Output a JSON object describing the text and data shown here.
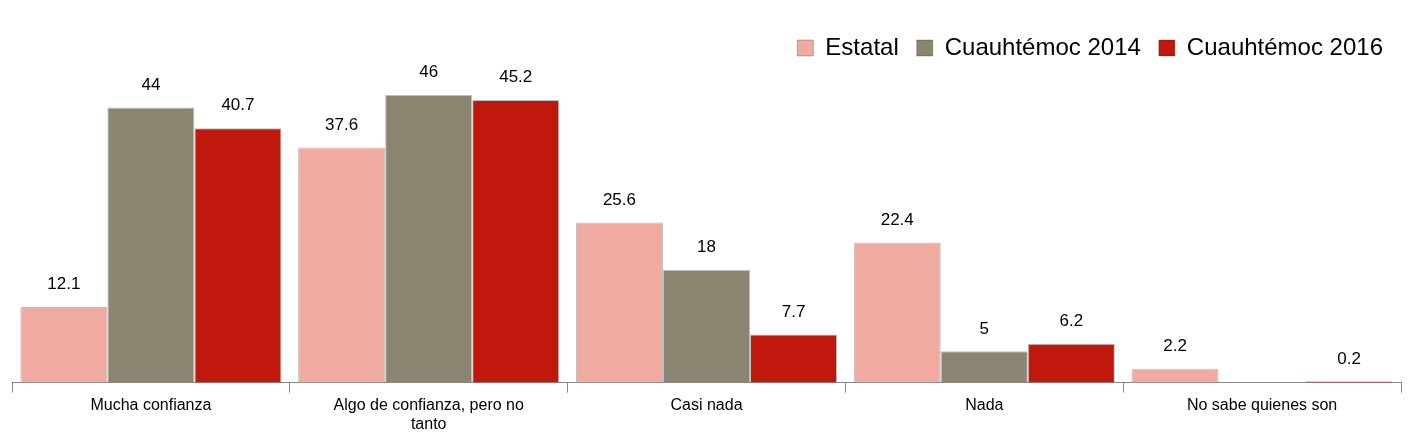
{
  "chart_data": {
    "type": "bar",
    "categories": [
      "Mucha confianza",
      "Algo de confianza, pero no tanto",
      "Casi nada",
      "Nada",
      "No sabe quienes son"
    ],
    "series": [
      {
        "name": "Estatal",
        "color": "#f0aaa0",
        "values": [
          12.1,
          37.6,
          25.6,
          22.4,
          2.2
        ]
      },
      {
        "name": "Cuauhtémoc 2014",
        "color": "#8b8470",
        "values": [
          44,
          46,
          18,
          5,
          null
        ]
      },
      {
        "name": "Cuauhtémoc 2016",
        "color": "#c0180c",
        "values": [
          40.7,
          45.2,
          7.7,
          6.2,
          0.2
        ]
      }
    ],
    "data_labels": true,
    "legend": "top right"
  }
}
